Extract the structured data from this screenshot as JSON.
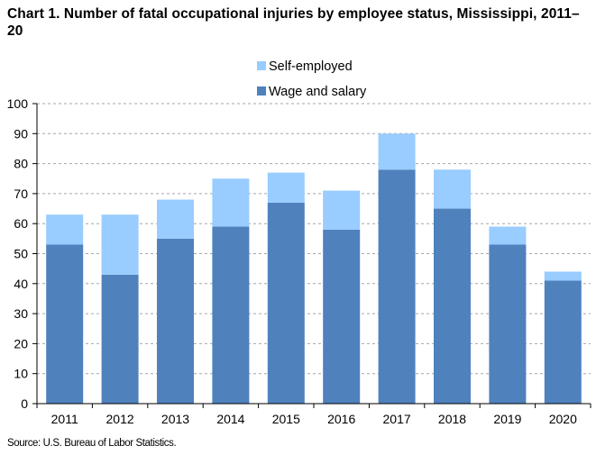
{
  "title": "Chart 1. Number of fatal occupational injuries by employee status, Mississippi, 2011–20",
  "source": "Source: U.S. Bureau of Labor Statistics.",
  "chart_data": {
    "type": "bar",
    "stacked": true,
    "categories": [
      "2011",
      "2012",
      "2013",
      "2014",
      "2015",
      "2016",
      "2017",
      "2018",
      "2019",
      "2020"
    ],
    "series": [
      {
        "name": "Wage and salary",
        "color": "#4f81bd",
        "values": [
          53,
          43,
          55,
          59,
          67,
          58,
          78,
          65,
          53,
          41
        ]
      },
      {
        "name": "Self-employed",
        "color": "#99ccff",
        "values": [
          10,
          20,
          13,
          16,
          10,
          13,
          12,
          13,
          6,
          3
        ]
      }
    ],
    "ylim": [
      0,
      100
    ],
    "yticks": [
      "0",
      "10",
      "20",
      "30",
      "40",
      "50",
      "60",
      "70",
      "80",
      "90",
      "100"
    ],
    "grid": true,
    "legend": {
      "placement": "top-center",
      "entries": [
        "Self-employed",
        "Wage and salary"
      ]
    },
    "xlabel": "",
    "ylabel": ""
  }
}
